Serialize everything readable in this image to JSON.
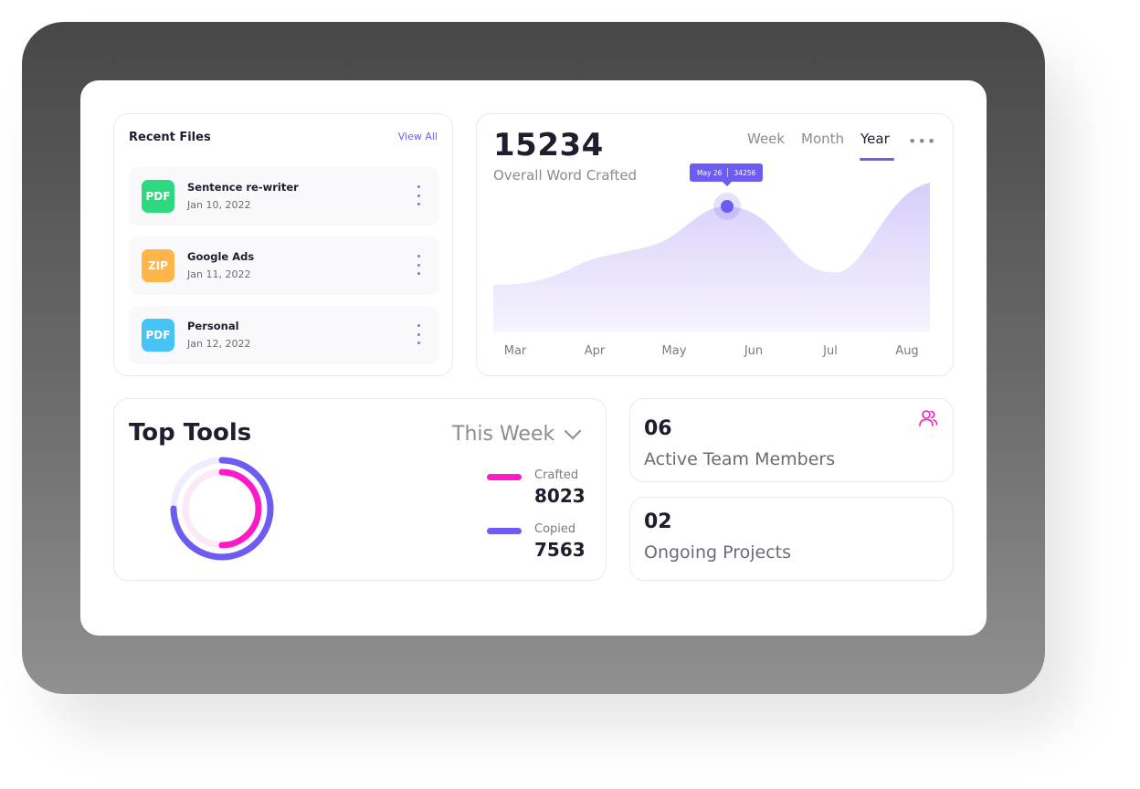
{
  "recent_files": {
    "title": "Recent Files",
    "view_all": "View All",
    "items": [
      {
        "type": "PDF",
        "name": "Sentence re-writer",
        "date": "Jan 10, 2022",
        "color": "#2ed87f"
      },
      {
        "type": "ZIP",
        "name": "Google Ads",
        "date": "Jan 11, 2022",
        "color": "#ffb547"
      },
      {
        "type": "PDF",
        "name": "Personal",
        "date": "Jan 12, 2022",
        "color": "#45c4f5"
      }
    ]
  },
  "overview": {
    "total": "15234",
    "subtitle": "Overall Word Crafted",
    "tabs": [
      "Week",
      "Month",
      "Year"
    ],
    "active_tab": "Year",
    "more_icon": "more-dots-icon",
    "tooltip": {
      "date": "May 26",
      "value": "34256"
    }
  },
  "chart_data": {
    "type": "area",
    "x": [
      "Mar",
      "Apr",
      "May",
      "Jun",
      "Jul",
      "Aug"
    ],
    "highlight": {
      "label": "May 26",
      "value": 34256
    },
    "accent_color": "#6c5cf2",
    "fill_color": "#e5dffb",
    "grid": false
  },
  "top_tools": {
    "title": "Top Tools",
    "period": "This Week",
    "legend": [
      {
        "name": "Crafted",
        "value": "8023",
        "color": "#ff1ac8"
      },
      {
        "name": "Copied",
        "value": "7563",
        "color": "#6c5cf2"
      }
    ]
  },
  "stats": {
    "team": {
      "number": "06",
      "label": "Active Team Members",
      "icon": "team-users-icon",
      "icon_color": "#ff1ac8"
    },
    "projects": {
      "number": "02",
      "label": "Ongoing Projects"
    }
  }
}
